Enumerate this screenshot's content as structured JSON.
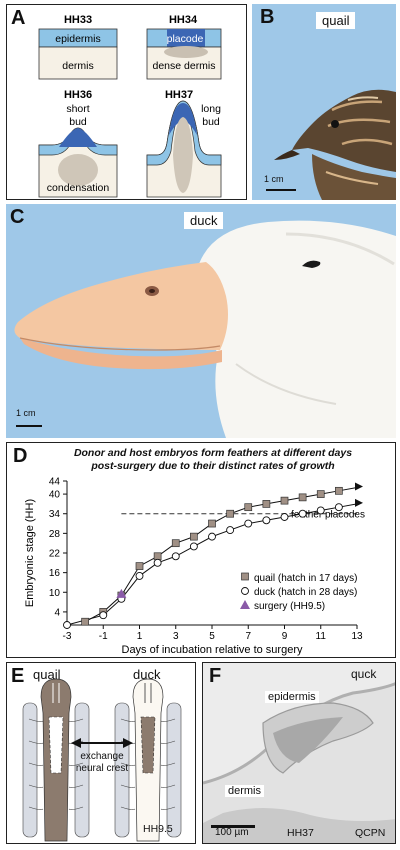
{
  "panel_labels": {
    "a": "A",
    "b": "B",
    "c": "C",
    "d": "D",
    "e": "E",
    "f": "F"
  },
  "panel_a": {
    "hh33": {
      "stage": "HH33",
      "epi": "epidermis",
      "dermis": "dermis"
    },
    "hh34": {
      "stage": "HH34",
      "placode": "placode",
      "dermis": "dense dermis"
    },
    "hh36": {
      "stage": "HH36",
      "bud_line1": "short",
      "bud_line2": "bud",
      "condensation": "condensation"
    },
    "hh37": {
      "stage": "HH37",
      "bud_line1": "long",
      "bud_line2": "bud"
    }
  },
  "panel_b": {
    "species": "quail",
    "scale": "1 cm"
  },
  "panel_c": {
    "species": "duck",
    "scale": "1 cm"
  },
  "panel_d": {
    "title_line1": "Donor and host embryos form feathers at different days",
    "title_line2": "post-surgery due to their distinct rates of growth",
    "annotation": "feather placodes"
  },
  "chart_data": {
    "type": "line",
    "title": "Donor and host embryos form feathers at different days post-surgery due to their distinct rates of growth",
    "xlabel": "Days of incubation relative to surgery",
    "ylabel": "Embryonic stage (HH)",
    "xlim": [
      -3,
      13
    ],
    "ylim": [
      0,
      44
    ],
    "xticks": [
      -3,
      -1,
      1,
      3,
      5,
      7,
      9,
      11,
      13
    ],
    "yticks": [
      4,
      10,
      16,
      22,
      28,
      34,
      40,
      44
    ],
    "reference_line": {
      "y": 34,
      "label": "feather placodes"
    },
    "series": [
      {
        "name": "quail (hatch in 17 days)",
        "marker": "square",
        "color": "#a09085",
        "x": [
          -2,
          -1,
          0,
          1,
          2,
          3,
          4,
          5,
          6,
          7,
          8,
          9,
          10,
          11,
          12
        ],
        "y": [
          1,
          4,
          9,
          18,
          21,
          25,
          27,
          31,
          34,
          36,
          37,
          38,
          39,
          40,
          41
        ]
      },
      {
        "name": "duck (hatch in 28 days)",
        "marker": "circle",
        "color": "#ffffff",
        "x": [
          -3,
          -1,
          0,
          1,
          2,
          3,
          4,
          5,
          6,
          7,
          8,
          9,
          10,
          11,
          12
        ],
        "y": [
          0,
          3,
          8,
          15,
          19,
          21,
          24,
          27,
          29,
          31,
          32,
          33,
          34,
          35,
          36
        ]
      },
      {
        "name": "surgery (HH9.5)",
        "marker": "triangle",
        "color": "#8a5aa8",
        "x": [
          0
        ],
        "y": [
          9.5
        ]
      }
    ],
    "legend": "lower-right"
  },
  "panel_e": {
    "left": "quail",
    "right": "duck",
    "exchange_line1": "exchange",
    "exchange_line2": "neural crest",
    "stage": "HH9.5"
  },
  "panel_f": {
    "species": "quck",
    "epidermis": "epidermis",
    "dermis": "dermis",
    "scale": "100 µm",
    "stage": "HH37",
    "stain": "QCPN"
  },
  "colors": {
    "quail_tissue": "#8c7b6e",
    "blue_epi": "#3b66b4",
    "light_blue": "#8ec4e6",
    "sky": "#9fc8e8"
  }
}
